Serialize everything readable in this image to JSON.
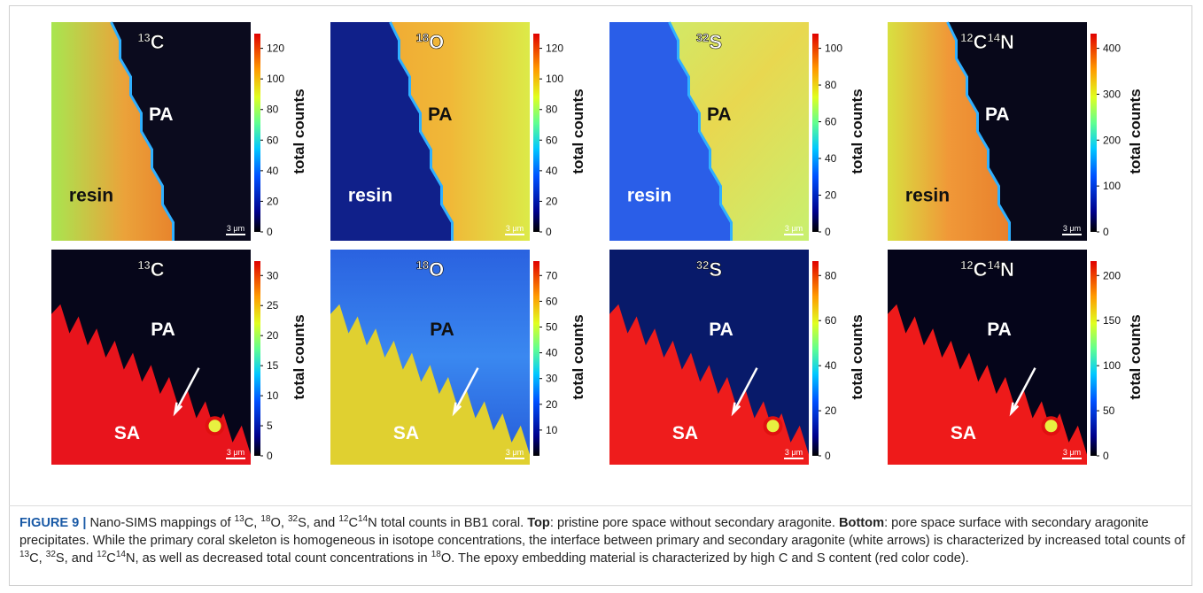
{
  "panels": [
    {
      "isotope": [
        "13",
        "C"
      ],
      "regions": [
        "PA",
        "resin"
      ],
      "ticks": [
        0,
        20,
        40,
        60,
        80,
        100,
        120
      ],
      "colorbar_label": "total counts",
      "scale_bar": "3 μm"
    },
    {
      "isotope": [
        "18",
        "O"
      ],
      "regions": [
        "PA",
        "resin"
      ],
      "ticks": [
        0,
        20,
        40,
        60,
        80,
        100,
        120
      ],
      "colorbar_label": "total counts",
      "scale_bar": "3 μm"
    },
    {
      "isotope": [
        "32",
        "S"
      ],
      "regions": [
        "PA",
        "resin"
      ],
      "ticks": [
        0,
        20,
        40,
        60,
        80,
        100
      ],
      "colorbar_label": "total counts",
      "scale_bar": "3 μm"
    },
    {
      "isotope": [
        "12",
        "C",
        "14",
        "N"
      ],
      "regions": [
        "PA",
        "resin"
      ],
      "ticks": [
        0,
        100,
        200,
        300,
        400
      ],
      "colorbar_label": "total counts",
      "scale_bar": "3 μm"
    },
    {
      "isotope": [
        "13",
        "C"
      ],
      "regions": [
        "PA",
        "SA"
      ],
      "ticks": [
        0,
        5,
        10,
        15,
        20,
        25,
        30
      ],
      "colorbar_label": "total counts",
      "scale_bar": "3 μm"
    },
    {
      "isotope": [
        "18",
        "O"
      ],
      "regions": [
        "PA",
        "SA"
      ],
      "ticks": [
        10,
        20,
        30,
        40,
        50,
        60,
        70
      ],
      "colorbar_label": "total counts",
      "scale_bar": "3 μm"
    },
    {
      "isotope": [
        "32",
        "S"
      ],
      "regions": [
        "PA",
        "SA"
      ],
      "ticks": [
        0,
        20,
        40,
        60,
        80
      ],
      "colorbar_label": "total counts",
      "scale_bar": "3 μm"
    },
    {
      "isotope": [
        "12",
        "C",
        "14",
        "N"
      ],
      "regions": [
        "PA",
        "SA"
      ],
      "ticks": [
        0,
        50,
        100,
        150,
        200
      ],
      "colorbar_label": "total counts",
      "scale_bar": "3 μm"
    }
  ],
  "caption": [
    {
      "text": "FIGURE 9 |",
      "style": "label"
    },
    {
      "text": " Nano-SIMS mappings of ",
      "style": "plain"
    },
    {
      "text": "13",
      "style": "sup"
    },
    {
      "text": "C, ",
      "style": "plain"
    },
    {
      "text": "18",
      "style": "sup"
    },
    {
      "text": "O, ",
      "style": "plain"
    },
    {
      "text": "32",
      "style": "sup"
    },
    {
      "text": "S, and ",
      "style": "plain"
    },
    {
      "text": "12",
      "style": "sup"
    },
    {
      "text": "C",
      "style": "plain"
    },
    {
      "text": "14",
      "style": "sup"
    },
    {
      "text": "N total counts in BB1 coral. ",
      "style": "plain"
    },
    {
      "text": "Top",
      "style": "bold"
    },
    {
      "text": ": pristine pore space without secondary aragonite. ",
      "style": "plain"
    },
    {
      "text": "Bottom",
      "style": "bold"
    },
    {
      "text": ": pore space surface with secondary aragonite precipitates. While the primary coral skeleton is homogeneous in isotope concentrations, the interface between primary and secondary aragonite (white arrows) is characterized by increased total counts of ",
      "style": "plain"
    },
    {
      "text": "13",
      "style": "sup"
    },
    {
      "text": "C, ",
      "style": "plain"
    },
    {
      "text": "32",
      "style": "sup"
    },
    {
      "text": "S, and ",
      "style": "plain"
    },
    {
      "text": "12",
      "style": "sup"
    },
    {
      "text": "C",
      "style": "plain"
    },
    {
      "text": "14",
      "style": "sup"
    },
    {
      "text": "N, as well as decreased total count concentrations in ",
      "style": "plain"
    },
    {
      "text": "18",
      "style": "sup"
    },
    {
      "text": "O. The epoxy embedding material is characterized by high C and S content (red color code).",
      "style": "plain"
    }
  ]
}
